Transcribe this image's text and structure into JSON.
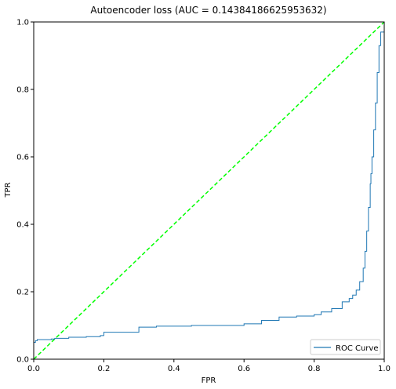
{
  "chart_data": {
    "type": "line",
    "title": "Autoencoder loss (AUC = 0.14384186625953632)",
    "xlabel": "FPR",
    "ylabel": "TPR",
    "xlim": [
      0.0,
      1.0
    ],
    "ylim": [
      0.0,
      1.0
    ],
    "x_ticks": [
      "0.0",
      "0.2",
      "0.4",
      "0.6",
      "0.8",
      "1.0"
    ],
    "y_ticks": [
      "0.0",
      "0.2",
      "0.4",
      "0.6",
      "0.8",
      "1.0"
    ],
    "grid": false,
    "legend_position": "lower-right",
    "series": [
      {
        "name": "ROC Curve",
        "color": "#1f77b4",
        "style": "solid",
        "x": [
          0.0,
          0.0,
          0.005,
          0.01,
          0.05,
          0.06,
          0.1,
          0.15,
          0.19,
          0.2,
          0.3,
          0.35,
          0.45,
          0.6,
          0.65,
          0.7,
          0.75,
          0.8,
          0.82,
          0.85,
          0.88,
          0.9,
          0.91,
          0.92,
          0.93,
          0.94,
          0.945,
          0.95,
          0.955,
          0.96,
          0.962,
          0.965,
          0.97,
          0.975,
          0.98,
          0.985,
          0.99,
          1.0
        ],
        "y": [
          0.0,
          0.05,
          0.055,
          0.058,
          0.06,
          0.062,
          0.065,
          0.067,
          0.07,
          0.08,
          0.095,
          0.098,
          0.1,
          0.105,
          0.115,
          0.125,
          0.128,
          0.132,
          0.14,
          0.15,
          0.17,
          0.18,
          0.19,
          0.205,
          0.23,
          0.27,
          0.32,
          0.38,
          0.45,
          0.52,
          0.55,
          0.6,
          0.68,
          0.76,
          0.85,
          0.93,
          0.97,
          1.0
        ]
      }
    ],
    "diagonal": {
      "x": [
        0.0,
        1.0
      ],
      "y": [
        0.0,
        1.0
      ],
      "color": "#00ff00",
      "style": "dashed"
    }
  }
}
